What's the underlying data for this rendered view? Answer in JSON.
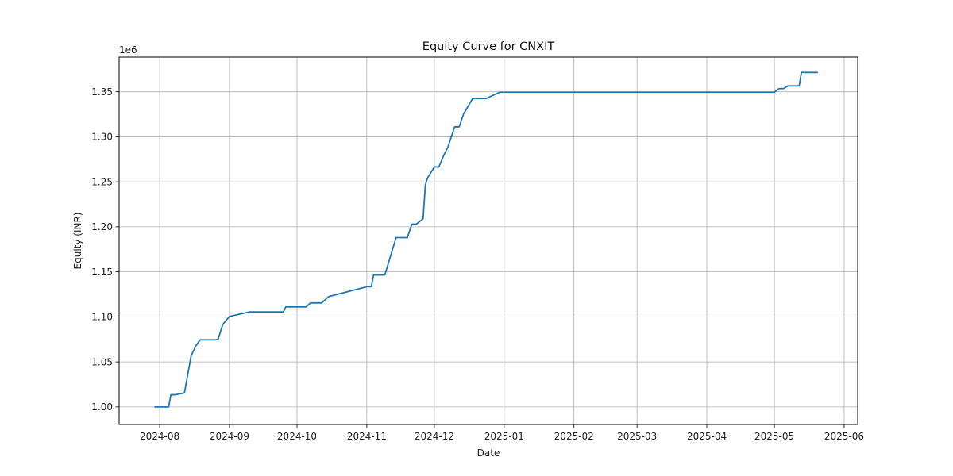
{
  "chart_data": {
    "type": "line",
    "title": "Equity Curve for CNXIT",
    "xlabel": "Date",
    "ylabel": "Equity (INR)",
    "y_offset_label": "1e6",
    "xlim": [
      "2024-07-14",
      "2025-06-07"
    ],
    "ylim": [
      0.9805,
      1.3885
    ],
    "grid": true,
    "x_ticks": [
      "2024-08-01",
      "2024-09-01",
      "2024-10-01",
      "2024-11-01",
      "2024-12-01",
      "2025-01-01",
      "2025-02-01",
      "2025-03-01",
      "2025-04-01",
      "2025-05-01",
      "2025-06-01"
    ],
    "x_tick_labels": [
      "2024-08",
      "2024-09",
      "2024-10",
      "2024-11",
      "2024-12",
      "2025-01",
      "2025-02",
      "2025-03",
      "2025-04",
      "2025-05",
      "2025-06"
    ],
    "y_ticks": [
      1.0,
      1.05,
      1.1,
      1.15,
      1.2,
      1.25,
      1.3,
      1.35
    ],
    "y_tick_labels": [
      "1.00",
      "1.05",
      "1.10",
      "1.15",
      "1.20",
      "1.25",
      "1.30",
      "1.35"
    ],
    "colors": {
      "line": "#1f77b4",
      "grid": "#b0b0b0",
      "axis": "#000000"
    },
    "series": [
      {
        "x": [
          "2024-07-30",
          "2024-08-05",
          "2024-08-06",
          "2024-08-08",
          "2024-08-12",
          "2024-08-15",
          "2024-08-17",
          "2024-08-19",
          "2024-08-26",
          "2024-08-27",
          "2024-08-29",
          "2024-09-01",
          "2024-09-10",
          "2024-09-11",
          "2024-09-25",
          "2024-09-26",
          "2024-10-02",
          "2024-10-05",
          "2024-10-07",
          "2024-10-09",
          "2024-10-12",
          "2024-10-15",
          "2024-11-01",
          "2024-11-03",
          "2024-11-04",
          "2024-11-08",
          "2024-11-09",
          "2024-11-14",
          "2024-11-19",
          "2024-11-21",
          "2024-11-23",
          "2024-11-26",
          "2024-11-27",
          "2024-11-28",
          "2024-12-01",
          "2024-12-03",
          "2024-12-05",
          "2024-12-07",
          "2024-12-10",
          "2024-12-12",
          "2024-12-14",
          "2024-12-18",
          "2024-12-24",
          "2024-12-30",
          "2025-01-02",
          "2025-03-01",
          "2025-05-01",
          "2025-05-03",
          "2025-05-05",
          "2025-05-07",
          "2025-05-12",
          "2025-05-13",
          "2025-05-18",
          "2025-05-20"
        ],
        "y": [
          1.0,
          1.0,
          1.0135,
          1.0135,
          1.0155,
          1.057,
          1.0675,
          1.0745,
          1.0745,
          1.0755,
          1.0915,
          1.1005,
          1.1055,
          1.1055,
          1.1055,
          1.111,
          1.111,
          1.111,
          1.1155,
          1.1155,
          1.1155,
          1.1225,
          1.1335,
          1.1335,
          1.1465,
          1.1465,
          1.1465,
          1.188,
          1.188,
          1.203,
          1.203,
          1.209,
          1.2465,
          1.2545,
          1.2665,
          1.2665,
          1.2785,
          1.2885,
          1.311,
          1.311,
          1.3255,
          1.3425,
          1.3425,
          1.3495,
          1.3495,
          1.3495,
          1.3495,
          1.3535,
          1.3535,
          1.3565,
          1.3565,
          1.3715,
          1.3715,
          1.3715
        ]
      }
    ]
  }
}
